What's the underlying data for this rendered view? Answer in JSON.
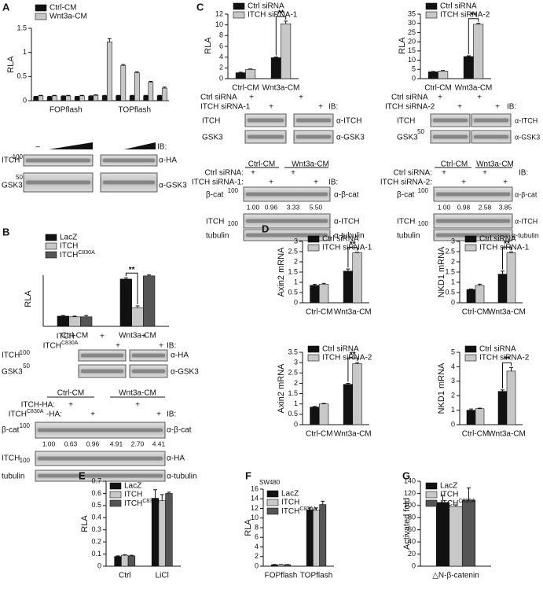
{
  "chart_data": [
    {
      "type": "bar",
      "ylabel": "RLA",
      "categories": [
        null,
        null,
        null,
        null,
        null,
        null,
        null,
        null,
        null,
        null
      ],
      "group_labels": [
        "FOPflash",
        "TOPflash"
      ],
      "ylim": [
        0,
        1.5
      ],
      "yticks": [
        0,
        0.5,
        1,
        1.5
      ],
      "series": [
        {
          "name": "Ctrl-CM",
          "color": "#111111",
          "values": [
            0.08,
            0.08,
            0.09,
            0.08,
            0.09,
            0.1,
            0.1,
            0.1,
            0.1,
            0.1
          ],
          "errors": [
            0.01,
            0.01,
            0.01,
            0.01,
            0.01,
            0.01,
            0.01,
            0.01,
            0.01,
            0.01
          ]
        },
        {
          "name": "Wnt3a-CM",
          "color": "#c8c8c8",
          "values": [
            0.1,
            0.1,
            0.1,
            0.1,
            0.11,
            1.22,
            0.73,
            0.58,
            0.38,
            0.26
          ],
          "errors": [
            0.01,
            0.01,
            0.01,
            0.01,
            0.01,
            0.07,
            0.02,
            0.02,
            0.02,
            0.02
          ]
        }
      ]
    },
    {
      "type": "bar",
      "ylabel": "RLA",
      "categories": [
        "Ctrl-CM",
        "Wnt3a-CM"
      ],
      "ylim": [
        0,
        8
      ],
      "series": [
        {
          "name": "LacZ",
          "color": "#111111",
          "values": [
            1.6,
            7.4
          ],
          "errors": [
            0.1,
            0.2
          ]
        },
        {
          "name": "ITCH",
          "color": "#c8c8c8",
          "values": [
            1.5,
            2.9
          ],
          "errors": [
            0.1,
            0.3
          ]
        },
        {
          "name": "ITCH",
          "superscript": "C830A",
          "color": "#555555",
          "values": [
            1.5,
            7.9
          ],
          "errors": [
            0.2,
            0.15
          ]
        }
      ],
      "significance": [
        {
          "text": "**",
          "category": "Wnt3a-CM"
        }
      ]
    },
    {
      "type": "bar",
      "ylabel": "RLA",
      "categories": [
        "Ctrl-CM",
        "Wnt3a-CM"
      ],
      "ylim": [
        0,
        12
      ],
      "yticks": [
        0,
        2,
        4,
        6,
        8,
        10,
        12
      ],
      "series": [
        {
          "name": "Ctrl siRNA",
          "color": "#111111",
          "values": [
            1.1,
            3.9
          ],
          "errors": [
            0.1,
            0.15
          ]
        },
        {
          "name": "ITCH siRNA-1",
          "color": "#c8c8c8",
          "values": [
            1.7,
            10.2
          ],
          "errors": [
            0.1,
            0.5
          ]
        }
      ],
      "significance": [
        {
          "text": "**",
          "category": "Wnt3a-CM"
        }
      ]
    },
    {
      "type": "bar",
      "ylabel": "RLA",
      "categories": [
        "Ctrl-CM",
        "Wnt3a-CM"
      ],
      "ylim": [
        0,
        35
      ],
      "yticks": [
        0,
        5,
        10,
        15,
        20,
        25,
        30,
        35
      ],
      "series": [
        {
          "name": "Ctrl siRNA",
          "color": "#111111",
          "values": [
            3.7,
            12
          ],
          "errors": [
            0.2,
            0.4
          ]
        },
        {
          "name": "ITCH siRNA-2",
          "color": "#c8c8c8",
          "values": [
            4.1,
            29.5
          ],
          "errors": [
            0.3,
            0.5
          ]
        }
      ],
      "significance": [
        {
          "text": "**",
          "category": "Wnt3a-CM"
        }
      ]
    },
    {
      "type": "bar",
      "ylabel": "Axin2 mRNA",
      "categories": [
        "Ctrl-CM",
        "Wnt3a-CM"
      ],
      "ylim": [
        0,
        3
      ],
      "yticks": [
        0,
        0.5,
        1,
        1.5,
        2,
        2.5,
        3
      ],
      "series": [
        {
          "name": "Ctrl siRNA",
          "color": "#111111",
          "values": [
            0.85,
            1.55
          ],
          "errors": [
            0.05,
            0.1
          ]
        },
        {
          "name": "ITCH siRNA-1",
          "color": "#c8c8c8",
          "values": [
            0.9,
            2.45
          ],
          "errors": [
            0.05,
            0.02
          ]
        }
      ],
      "significance": [
        {
          "text": "**",
          "category": "Wnt3a-CM"
        }
      ]
    },
    {
      "type": "bar",
      "ylabel": "NKD1 mRNA",
      "categories": [
        "Ctrl-CM",
        "Wnt3a-CM"
      ],
      "ylim": [
        0,
        3
      ],
      "yticks": [
        0,
        0.5,
        1,
        1.5,
        2,
        2.5,
        3
      ],
      "series": [
        {
          "name": "Ctrl siRNA",
          "color": "#111111",
          "values": [
            0.65,
            1.4
          ],
          "errors": [
            0.02,
            0.15
          ]
        },
        {
          "name": "ITCH siRNA-1",
          "color": "#c8c8c8",
          "values": [
            0.85,
            2.45
          ],
          "errors": [
            0.06,
            0.04
          ]
        }
      ],
      "significance": [
        {
          "text": "**",
          "category": "Wnt3a-CM"
        }
      ]
    },
    {
      "type": "bar",
      "ylabel": "Axin2 mRNA",
      "categories": [
        "Ctrl-CM",
        "Wnt3a-CM"
      ],
      "ylim": [
        0,
        3.5
      ],
      "yticks": [
        0,
        0.5,
        1,
        1.5,
        2,
        2.5,
        3,
        3.5
      ],
      "series": [
        {
          "name": "Ctrl siRNA",
          "color": "#111111",
          "values": [
            0.85,
            1.95
          ],
          "errors": [
            0.03,
            0.05
          ]
        },
        {
          "name": "ITCH siRNA-2",
          "color": "#c8c8c8",
          "values": [
            1.0,
            2.95
          ],
          "errors": [
            0.03,
            0.05
          ]
        }
      ],
      "significance": [
        {
          "text": "**",
          "category": "Wnt3a-CM"
        }
      ]
    },
    {
      "type": "bar",
      "ylabel": "NKD1 mRNA",
      "categories": [
        "Ctrl-CM",
        "Wnt3a-CM"
      ],
      "ylim": [
        0,
        5
      ],
      "yticks": [
        0,
        1,
        2,
        3,
        4,
        5
      ],
      "series": [
        {
          "name": "Ctrl siRNA",
          "color": "#111111",
          "values": [
            1.0,
            2.3
          ],
          "errors": [
            0.08,
            0.1
          ]
        },
        {
          "name": "ITCH siRNA-2",
          "color": "#c8c8c8",
          "values": [
            1.1,
            3.7
          ],
          "errors": [
            0.04,
            0.25
          ]
        }
      ],
      "significance": [
        {
          "text": "**",
          "category": "Wnt3a-CM"
        }
      ]
    },
    {
      "type": "bar",
      "ylabel": "RLA",
      "categories": [
        "Ctrl",
        "LiCl"
      ],
      "ylim": [
        0,
        0.7
      ],
      "yticks": [
        0,
        0.1,
        0.2,
        0.3,
        0.4,
        0.5,
        0.6,
        0.7
      ],
      "series": [
        {
          "name": "LacZ",
          "color": "#111111",
          "values": [
            0.08,
            0.56
          ],
          "errors": [
            0.005,
            0.07
          ]
        },
        {
          "name": "ITCH",
          "color": "#c8c8c8",
          "values": [
            0.09,
            0.54
          ],
          "errors": [
            0.005,
            0.05
          ]
        },
        {
          "name": "ITCH",
          "superscript": "C830A",
          "color": "#555555",
          "values": [
            0.085,
            0.6
          ],
          "errors": [
            0.005,
            0.01
          ]
        }
      ]
    },
    {
      "type": "bar",
      "ylabel": "RLA",
      "annotation": "SW480",
      "categories": [
        "FOPflash",
        "TOPflash"
      ],
      "ylim": [
        0,
        16
      ],
      "yticks": [
        0,
        2,
        4,
        6,
        8,
        10,
        12,
        14,
        16
      ],
      "series": [
        {
          "name": "LacZ",
          "color": "#111111",
          "values": [
            0.3,
            11.7
          ],
          "errors": [
            0.05,
            0.4
          ]
        },
        {
          "name": "ITCH",
          "color": "#c8c8c8",
          "values": [
            0.3,
            11.6
          ],
          "errors": [
            0.05,
            0.5
          ]
        },
        {
          "name": "ITCH",
          "superscript": "C830A",
          "color": "#555555",
          "values": [
            0.3,
            12.8
          ],
          "errors": [
            0.05,
            0.7
          ]
        }
      ]
    },
    {
      "type": "bar",
      "ylabel": "Activated fold",
      "categories": [
        "△N-β-catenin"
      ],
      "ylim": [
        0,
        140
      ],
      "yticks": [
        0,
        20,
        40,
        60,
        80,
        100,
        120,
        140
      ],
      "series": [
        {
          "name": "LacZ",
          "color": "#111111",
          "values": [
            105
          ],
          "errors": [
            12
          ]
        },
        {
          "name": "ITCH",
          "color": "#c8c8c8",
          "values": [
            98
          ],
          "errors": [
            3
          ]
        },
        {
          "name": "ITCH",
          "superscript": "C830A",
          "color": "#555555",
          "values": [
            109
          ],
          "errors": [
            20
          ]
        }
      ]
    }
  ],
  "figure_labels": [
    "A",
    "B",
    "C",
    "D",
    "E",
    "F",
    "G",
    "–",
    "IB:",
    "ITCH",
    "100",
    "α-HA",
    "GSK3",
    "50",
    "α-GSK3",
    "ITCH",
    "+",
    "+",
    "ITCH",
    "C830A",
    "+",
    "+",
    "IB:",
    "ITCH",
    "100",
    "α-HA",
    "GSK3",
    "50",
    "α-GSK3",
    "Ctrl-CM",
    "Wnt3a-CM",
    "ITCH-HA:",
    "+",
    "+",
    "ITCH",
    "C830A",
    "-HA:",
    "+",
    "+",
    "IB:",
    "β-cat",
    "100",
    "α-β-cat",
    "1.00",
    "0.63",
    "0.96",
    "4.91",
    "2.70",
    "4.41",
    "ITCH",
    "100",
    "α-HA",
    "tubulin",
    "α-tubulin",
    "Ctrl siRNA",
    "+",
    "+",
    "ITCH siRNA-1",
    "+",
    "+",
    "IB:",
    "ITCH",
    "α-ITCH",
    "GSK3",
    "α-GSK3",
    "Ctrl-CM",
    "Wnt3a-CM",
    "Ctrl siRNA:",
    "+",
    "+",
    "ITCH siRNA-1:",
    "+",
    "+",
    "IB:",
    "β-cat",
    "100",
    "α-β-cat",
    "1.00",
    "0.96",
    "3.33",
    "5.50",
    "ITCH",
    "100",
    "α-ITCH",
    "tubulin",
    "α-tubulin",
    "Ctrl siRNA",
    "+",
    "+",
    "ITCH siRNA-2",
    "+",
    "+",
    "IB:",
    "ITCH",
    "α-ITCH",
    "GSK3",
    "50",
    "α-GSK3",
    "Ctrl-CM",
    "Wnt3a-CM",
    "Ctrl siRNA:",
    "+",
    "+",
    "ITCH siRNA-2:",
    "+",
    "+",
    "IB:",
    "β-cat",
    "100",
    "α-β-cat",
    "1.00",
    "0.98",
    "2.58",
    "3.85",
    "ITCH",
    "100",
    "α-ITCH",
    "tubulin",
    "α-tubulin"
  ]
}
